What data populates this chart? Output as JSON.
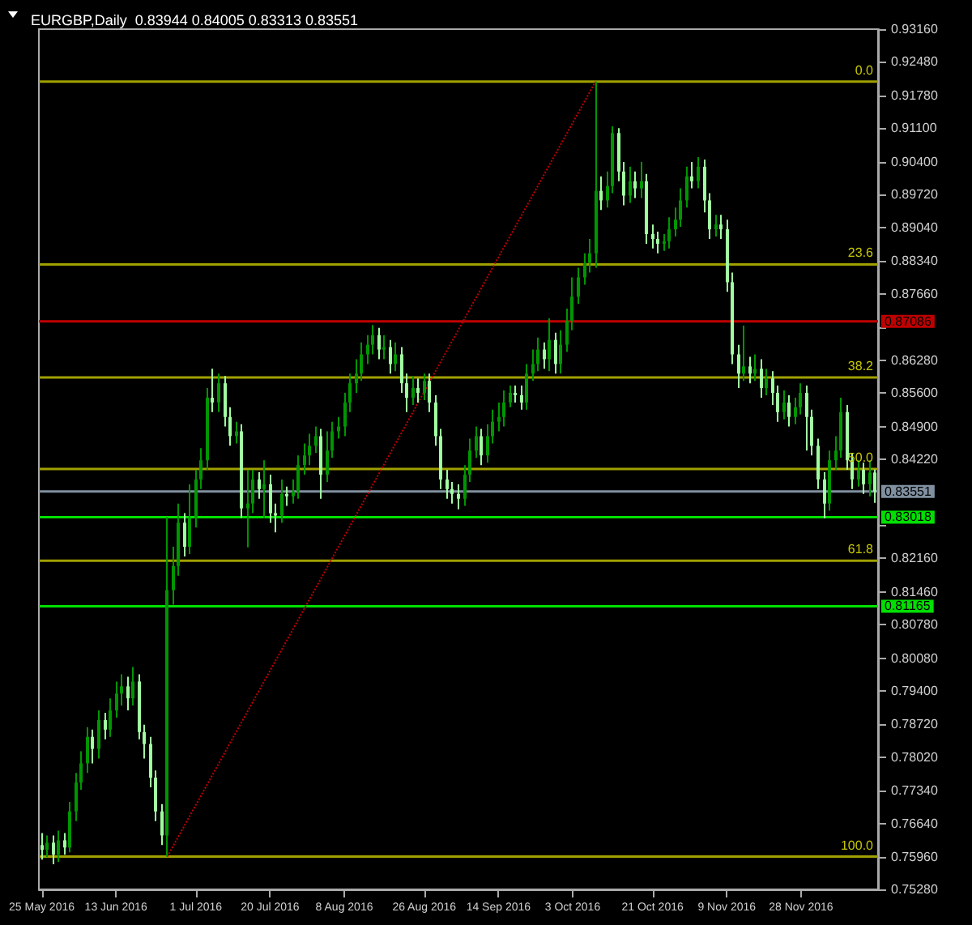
{
  "chart_data": {
    "type": "candlestick",
    "title": "EURGBP,Daily  0.83944 0.84005 0.83313 0.83551",
    "categories": [
      "25 May 2016",
      null,
      null,
      null,
      null,
      null,
      null,
      null,
      null,
      null,
      null,
      null,
      null,
      "13 Jun 2016",
      null,
      null,
      null,
      null,
      null,
      null,
      null,
      null,
      null,
      null,
      null,
      null,
      null,
      "1 Jul 2016",
      null,
      null,
      null,
      null,
      null,
      null,
      null,
      null,
      null,
      null,
      null,
      null,
      "20 Jul 2016",
      null,
      null,
      null,
      null,
      null,
      null,
      null,
      null,
      null,
      null,
      null,
      null,
      "8 Aug 2016",
      null,
      null,
      null,
      null,
      null,
      null,
      null,
      null,
      null,
      null,
      null,
      null,
      null,
      "26 Aug 2016",
      null,
      null,
      null,
      null,
      null,
      null,
      null,
      null,
      null,
      null,
      null,
      null,
      "14 Sep 2016",
      null,
      null,
      null,
      null,
      null,
      null,
      null,
      null,
      null,
      null,
      null,
      null,
      "3 Oct 2016",
      null,
      null,
      null,
      null,
      null,
      null,
      null,
      null,
      null,
      null,
      null,
      null,
      null,
      "21 Oct 2016",
      null,
      null,
      null,
      null,
      null,
      null,
      null,
      null,
      null,
      null,
      null,
      null,
      "9 Nov 2016",
      null,
      null,
      null,
      null,
      null,
      null,
      null,
      null,
      null,
      null,
      null,
      null,
      "28 Nov 2016",
      null,
      null,
      null,
      null,
      null,
      null,
      null,
      null,
      null,
      null,
      null,
      null,
      null
    ],
    "colors": [
      "#a0ffa0",
      "#009600",
      "#a0ffa0",
      "#009600",
      "#a0ffa0",
      "#009600",
      "#009600",
      "#009600",
      "#009600",
      "#a0ffa0",
      "#009600",
      "#a0ffa0",
      "#009600",
      "#009600",
      "#009600",
      "#a0ffa0",
      "#009600",
      "#a0ffa0",
      "#a0ffa0",
      "#a0ffa0",
      "#a0ffa0",
      "#a0ffa0",
      "#009600",
      "#009600",
      "#009600",
      "#a0ffa0",
      "#009600",
      "#009600",
      "#009600",
      "#009600",
      "#a0ffa0",
      "#009600",
      "#a0ffa0",
      "#a0ffa0",
      "#009600",
      "#a0ffa0",
      "#009600",
      "#009600",
      "#a0ffa0",
      "#009600",
      "#a0ffa0",
      "#a0ffa0",
      "#009600",
      "#a0ffa0",
      "#009600",
      "#009600",
      "#009600",
      "#009600",
      "#009600",
      "#a0ffa0",
      "#009600",
      "#009600",
      "#009600",
      "#009600",
      "#009600",
      "#009600",
      "#009600",
      "#009600",
      "#009600",
      "#a0ffa0",
      "#009600",
      "#a0ffa0",
      "#009600",
      "#a0ffa0",
      "#a0ffa0",
      "#009600",
      "#a0ffa0",
      "#009600",
      "#a0ffa0",
      "#a0ffa0",
      "#a0ffa0",
      "#a0ffa0",
      "#a0ffa0",
      "#a0ffa0",
      "#009600",
      "#009600",
      "#009600",
      "#a0ffa0",
      "#009600",
      "#009600",
      "#009600",
      "#009600",
      "#009600",
      "#a0ffa0",
      "#a0ffa0",
      "#009600",
      "#009600",
      "#009600",
      "#a0ffa0",
      "#009600",
      "#a0ffa0",
      "#009600",
      "#009600",
      "#009600",
      "#009600",
      "#009600",
      "#009600",
      "#009600",
      "#a0ffa0",
      "#009600",
      "#009600",
      "#a0ffa0",
      "#a0ffa0",
      "#009600",
      "#a0ffa0",
      "#009600",
      "#a0ffa0",
      "#a0ffa0",
      "#a0ffa0",
      "#009600",
      "#009600",
      "#009600",
      "#009600",
      "#009600",
      "#a0ffa0",
      "#009600",
      "#a0ffa0",
      "#a0ffa0",
      "#009600",
      "#a0ffa0",
      "#a0ffa0",
      "#a0ffa0",
      "#a0ffa0",
      "#009600",
      "#a0ffa0",
      "#009600",
      "#a0ffa0",
      "#009600",
      "#a0ffa0",
      "#a0ffa0",
      "#009600",
      "#a0ffa0",
      "#009600",
      "#009600",
      "#a0ffa0",
      "#a0ffa0",
      "#a0ffa0",
      "#a0ffa0",
      "#009600",
      "#009600",
      "#009600",
      "#a0ffa0",
      "#a0ffa0",
      "#009600",
      "#a0ffa0",
      "#009600",
      "#a0ffa0"
    ],
    "ohlc": [
      [
        0.762,
        0.7645,
        0.759,
        0.761
      ],
      [
        0.761,
        0.764,
        0.7595,
        0.7625
      ],
      [
        0.7625,
        0.764,
        0.758,
        0.76
      ],
      [
        0.76,
        0.765,
        0.7585,
        0.763
      ],
      [
        0.763,
        0.7645,
        0.76,
        0.7615
      ],
      [
        0.7615,
        0.771,
        0.7605,
        0.769
      ],
      [
        0.769,
        0.777,
        0.767,
        0.775
      ],
      [
        0.775,
        0.7815,
        0.7735,
        0.779
      ],
      [
        0.779,
        0.7865,
        0.777,
        0.7845
      ],
      [
        0.7845,
        0.786,
        0.779,
        0.782
      ],
      [
        0.782,
        0.79,
        0.78,
        0.788
      ],
      [
        0.788,
        0.7895,
        0.784,
        0.786
      ],
      [
        0.786,
        0.7925,
        0.7845,
        0.79
      ],
      [
        0.79,
        0.796,
        0.7885,
        0.7935
      ],
      [
        0.7935,
        0.7975,
        0.791,
        0.795
      ],
      [
        0.795,
        0.797,
        0.79,
        0.7925
      ],
      [
        0.7925,
        0.799,
        0.791,
        0.796
      ],
      [
        0.796,
        0.7975,
        0.784,
        0.7855
      ],
      [
        0.7855,
        0.787,
        0.78,
        0.783
      ],
      [
        0.783,
        0.7845,
        0.774,
        0.776
      ],
      [
        0.776,
        0.7775,
        0.767,
        0.769
      ],
      [
        0.769,
        0.7705,
        0.762,
        0.764
      ],
      [
        0.764,
        0.8302,
        0.7596,
        0.815
      ],
      [
        0.815,
        0.824,
        0.812,
        0.82
      ],
      [
        0.82,
        0.833,
        0.818,
        0.829
      ],
      [
        0.829,
        0.831,
        0.822,
        0.824
      ],
      [
        0.824,
        0.837,
        0.8225,
        0.83
      ],
      [
        0.83,
        0.84,
        0.828,
        0.838
      ],
      [
        0.838,
        0.8445,
        0.836,
        0.842
      ],
      [
        0.842,
        0.857,
        0.84,
        0.855
      ],
      [
        0.855,
        0.861,
        0.852,
        0.854
      ],
      [
        0.854,
        0.86,
        0.852,
        0.858
      ],
      [
        0.858,
        0.8595,
        0.849,
        0.851
      ],
      [
        0.851,
        0.853,
        0.845,
        0.847
      ],
      [
        0.847,
        0.85,
        0.8455,
        0.848
      ],
      [
        0.848,
        0.8495,
        0.83,
        0.832
      ],
      [
        0.832,
        0.84,
        0.8239,
        0.833
      ],
      [
        0.833,
        0.84,
        0.831,
        0.838
      ],
      [
        0.838,
        0.8395,
        0.834,
        0.836
      ],
      [
        0.836,
        0.842,
        0.83,
        0.837
      ],
      [
        0.837,
        0.839,
        0.829,
        0.831
      ],
      [
        0.831,
        0.833,
        0.827,
        0.8305
      ],
      [
        0.8305,
        0.838,
        0.829,
        0.835
      ],
      [
        0.835,
        0.8365,
        0.8325,
        0.8345
      ],
      [
        0.8345,
        0.838,
        0.833,
        0.8355
      ],
      [
        0.8355,
        0.843,
        0.834,
        0.841
      ],
      [
        0.841,
        0.8455,
        0.839,
        0.843
      ],
      [
        0.843,
        0.8475,
        0.841,
        0.845
      ],
      [
        0.845,
        0.849,
        0.8435,
        0.847
      ],
      [
        0.847,
        0.8485,
        0.834,
        0.839
      ],
      [
        0.839,
        0.848,
        0.8375,
        0.844
      ],
      [
        0.844,
        0.85,
        0.8425,
        0.848
      ],
      [
        0.848,
        0.851,
        0.8465,
        0.849
      ],
      [
        0.849,
        0.856,
        0.847,
        0.854
      ],
      [
        0.854,
        0.86,
        0.852,
        0.858
      ],
      [
        0.858,
        0.863,
        0.856,
        0.86
      ],
      [
        0.86,
        0.8665,
        0.8585,
        0.864
      ],
      [
        0.864,
        0.868,
        0.862,
        0.866
      ],
      [
        0.866,
        0.8701,
        0.864,
        0.868
      ],
      [
        0.868,
        0.8695,
        0.863,
        0.865
      ],
      [
        0.865,
        0.868,
        0.863,
        0.8655
      ],
      [
        0.8655,
        0.867,
        0.86,
        0.862
      ],
      [
        0.862,
        0.8665,
        0.8605,
        0.864
      ],
      [
        0.864,
        0.8655,
        0.856,
        0.858
      ],
      [
        0.858,
        0.86,
        0.852,
        0.855
      ],
      [
        0.855,
        0.8595,
        0.8535,
        0.857
      ],
      [
        0.857,
        0.859,
        0.854,
        0.856
      ],
      [
        0.856,
        0.86,
        0.8545,
        0.8585
      ],
      [
        0.8585,
        0.86,
        0.852,
        0.854
      ],
      [
        0.854,
        0.8555,
        0.845,
        0.847
      ],
      [
        0.847,
        0.8485,
        0.836,
        0.838
      ],
      [
        0.838,
        0.84,
        0.834,
        0.836
      ],
      [
        0.836,
        0.8375,
        0.833,
        0.835
      ],
      [
        0.835,
        0.837,
        0.8318,
        0.834
      ],
      [
        0.834,
        0.841,
        0.8325,
        0.839
      ],
      [
        0.839,
        0.8465,
        0.8375,
        0.844
      ],
      [
        0.844,
        0.849,
        0.8425,
        0.847
      ],
      [
        0.847,
        0.8485,
        0.841,
        0.843
      ],
      [
        0.843,
        0.8495,
        0.8415,
        0.847
      ],
      [
        0.847,
        0.8525,
        0.8455,
        0.85
      ],
      [
        0.85,
        0.854,
        0.848,
        0.851
      ],
      [
        0.851,
        0.8565,
        0.849,
        0.854
      ],
      [
        0.854,
        0.8575,
        0.853,
        0.856
      ],
      [
        0.856,
        0.8575,
        0.854,
        0.8555
      ],
      [
        0.8555,
        0.8575,
        0.8525,
        0.854
      ],
      [
        0.854,
        0.862,
        0.8525,
        0.86
      ],
      [
        0.86,
        0.865,
        0.8585,
        0.862
      ],
      [
        0.862,
        0.8675,
        0.8605,
        0.865
      ],
      [
        0.865,
        0.8665,
        0.861,
        0.863
      ],
      [
        0.863,
        0.8715,
        0.8605,
        0.867
      ],
      [
        0.867,
        0.8685,
        0.86,
        0.862
      ],
      [
        0.862,
        0.869,
        0.86,
        0.866
      ],
      [
        0.866,
        0.8735,
        0.8645,
        0.871
      ],
      [
        0.871,
        0.88,
        0.869,
        0.876
      ],
      [
        0.876,
        0.882,
        0.8745,
        0.88
      ],
      [
        0.88,
        0.885,
        0.8785,
        0.883
      ],
      [
        0.883,
        0.888,
        0.881,
        0.885
      ],
      [
        0.885,
        0.9207,
        0.882,
        0.898
      ],
      [
        0.898,
        0.901,
        0.894,
        0.896
      ],
      [
        0.896,
        0.902,
        0.8945,
        0.899
      ],
      [
        0.899,
        0.9114,
        0.8975,
        0.91
      ],
      [
        0.91,
        0.911,
        0.9,
        0.902
      ],
      [
        0.902,
        0.904,
        0.895,
        0.897
      ],
      [
        0.897,
        0.903,
        0.8955,
        0.9
      ],
      [
        0.9,
        0.902,
        0.8965,
        0.8985
      ],
      [
        0.8985,
        0.904,
        0.8965,
        0.9
      ],
      [
        0.9,
        0.9015,
        0.887,
        0.889
      ],
      [
        0.889,
        0.891,
        0.886,
        0.888
      ],
      [
        0.888,
        0.8895,
        0.885,
        0.887
      ],
      [
        0.887,
        0.889,
        0.8855,
        0.8875
      ],
      [
        0.8875,
        0.8925,
        0.886,
        0.89
      ],
      [
        0.89,
        0.8945,
        0.8885,
        0.892
      ],
      [
        0.892,
        0.8985,
        0.8905,
        0.896
      ],
      [
        0.896,
        0.903,
        0.8945,
        0.901
      ],
      [
        0.901,
        0.904,
        0.8985,
        0.9
      ],
      [
        0.9,
        0.905,
        0.8985,
        0.903
      ],
      [
        0.903,
        0.9045,
        0.8935,
        0.896
      ],
      [
        0.896,
        0.8975,
        0.888,
        0.89
      ],
      [
        0.89,
        0.893,
        0.8885,
        0.891
      ],
      [
        0.891,
        0.893,
        0.888,
        0.89
      ],
      [
        0.89,
        0.892,
        0.877,
        0.879
      ],
      [
        0.879,
        0.881,
        0.862,
        0.864
      ],
      [
        0.864,
        0.866,
        0.857,
        0.86
      ],
      [
        0.86,
        0.87,
        0.8585,
        0.8615
      ],
      [
        0.8615,
        0.8635,
        0.858,
        0.86
      ],
      [
        0.86,
        0.864,
        0.8585,
        0.861
      ],
      [
        0.861,
        0.863,
        0.855,
        0.857
      ],
      [
        0.857,
        0.861,
        0.8555,
        0.859
      ],
      [
        0.859,
        0.8605,
        0.8535,
        0.856
      ],
      [
        0.856,
        0.8575,
        0.85,
        0.852
      ],
      [
        0.852,
        0.8565,
        0.8505,
        0.854
      ],
      [
        0.854,
        0.8555,
        0.849,
        0.851
      ],
      [
        0.851,
        0.855,
        0.8495,
        0.853
      ],
      [
        0.853,
        0.858,
        0.8515,
        0.856
      ],
      [
        0.856,
        0.8575,
        0.844,
        0.851
      ],
      [
        0.851,
        0.8525,
        0.843,
        0.845
      ],
      [
        0.845,
        0.8465,
        0.836,
        0.838
      ],
      [
        0.838,
        0.8395,
        0.8299,
        0.833
      ],
      [
        0.833,
        0.844,
        0.8315,
        0.842
      ],
      [
        0.842,
        0.847,
        0.84,
        0.844
      ],
      [
        0.844,
        0.855,
        0.8425,
        0.852
      ],
      [
        0.852,
        0.8535,
        0.84,
        0.842
      ],
      [
        0.842,
        0.8435,
        0.836,
        0.838
      ],
      [
        0.838,
        0.842,
        0.8365,
        0.84
      ],
      [
        0.84,
        0.8415,
        0.835,
        0.837
      ],
      [
        0.837,
        0.842,
        0.8345,
        0.83944
      ],
      [
        0.83944,
        0.84005,
        0.83313,
        0.83551
      ]
    ],
    "series": [
      {
        "type": "line",
        "color": "#c00000",
        "line_style": "dotted",
        "values": [
          null,
          null,
          null,
          null,
          null,
          null,
          null,
          null,
          null,
          null,
          null,
          null,
          null,
          null,
          null,
          null,
          null,
          null,
          null,
          null,
          null,
          null,
          0.7596,
          null,
          null,
          null,
          null,
          null,
          null,
          null,
          null,
          null,
          null,
          null,
          null,
          null,
          null,
          null,
          null,
          null,
          null,
          null,
          null,
          null,
          null,
          null,
          null,
          null,
          null,
          null,
          null,
          null,
          null,
          null,
          null,
          null,
          null,
          null,
          null,
          null,
          null,
          null,
          null,
          null,
          null,
          null,
          null,
          null,
          null,
          null,
          null,
          null,
          null,
          null,
          null,
          null,
          null,
          null,
          null,
          null,
          null,
          null,
          null,
          null,
          null,
          null,
          null,
          null,
          null,
          null,
          null,
          null,
          null,
          null,
          null,
          null,
          null,
          0.9207,
          null,
          null,
          null,
          null,
          null,
          null,
          null,
          null,
          null,
          null,
          null,
          null,
          null,
          null,
          null,
          null,
          null,
          null,
          null,
          null,
          null,
          null,
          null,
          null,
          null,
          null,
          null,
          null,
          null,
          null,
          null,
          null,
          null,
          null,
          null,
          null,
          null,
          null,
          null,
          null,
          null,
          null,
          null,
          null,
          null,
          null,
          null,
          null,
          null
        ]
      }
    ],
    "ylim": [
      0.7528,
      0.9316
    ],
    "yticks": [
      {
        "value": 0.9316,
        "label": "0.93160"
      },
      {
        "value": 0.9248,
        "label": "0.92480"
      },
      {
        "value": 0.9178,
        "label": "0.91780"
      },
      {
        "value": 0.911,
        "label": "0.91100"
      },
      {
        "value": 0.904,
        "label": "0.90400"
      },
      {
        "value": 0.8972,
        "label": "0.89720"
      },
      {
        "value": 0.8904,
        "label": "0.89040"
      },
      {
        "value": 0.8834,
        "label": "0.88340"
      },
      {
        "value": 0.8766,
        "label": "0.87660"
      },
      {
        "value": 0.8696,
        "label": null
      },
      {
        "value": 0.8628,
        "label": "0.86280"
      },
      {
        "value": 0.856,
        "label": "0.85600"
      },
      {
        "value": 0.849,
        "label": "0.84900"
      },
      {
        "value": 0.8422,
        "label": "0.84220"
      },
      {
        "value": 0.8284,
        "label": null
      },
      {
        "value": 0.8216,
        "label": "0.82160"
      },
      {
        "value": 0.8146,
        "label": "0.81460"
      },
      {
        "value": 0.8078,
        "label": "0.80780"
      },
      {
        "value": 0.8008,
        "label": "0.80080"
      },
      {
        "value": 0.794,
        "label": "0.79400"
      },
      {
        "value": 0.7872,
        "label": "0.78720"
      },
      {
        "value": 0.7802,
        "label": "0.78020"
      },
      {
        "value": 0.7734,
        "label": "0.77340"
      },
      {
        "value": 0.7664,
        "label": "0.76640"
      },
      {
        "value": 0.7596,
        "label": "0.75960"
      },
      {
        "value": 0.7528,
        "label": "0.75280"
      }
    ],
    "ref_lines": [
      {
        "axis": "y",
        "value": 0.9207,
        "color": "#a0a000"
      },
      {
        "axis": "y",
        "value": 0.8827,
        "color": "#a0a000"
      },
      {
        "axis": "y",
        "value": 0.8592,
        "color": "#a0a000"
      },
      {
        "axis": "y",
        "value": 0.8402,
        "color": "#a0a000"
      },
      {
        "axis": "y",
        "value": 0.8211,
        "color": "#a0a000"
      },
      {
        "axis": "y",
        "value": 0.7596,
        "color": "#a0a000"
      },
      {
        "axis": "y",
        "value": 0.87086,
        "label": "0.87086",
        "color": "#c00000"
      },
      {
        "axis": "y",
        "value": 0.83551,
        "label": "0.83551",
        "color": "#8090a0"
      },
      {
        "axis": "y",
        "value": 0.83018,
        "label": "0.83018",
        "color": "#00e000"
      },
      {
        "axis": "y",
        "value": 0.81165,
        "label": "0.81165",
        "color": "#00e000"
      }
    ],
    "annotations": [
      {
        "text": "0.0",
        "y": 0.9207
      },
      {
        "text": "23.6",
        "y": 0.8827
      },
      {
        "text": "38.2",
        "y": 0.8592
      },
      {
        "text": "50.0",
        "y": 0.8402
      },
      {
        "text": "61.8",
        "y": 0.8211
      },
      {
        "text": "100.0",
        "y": 0.7596
      }
    ],
    "grid": false
  }
}
